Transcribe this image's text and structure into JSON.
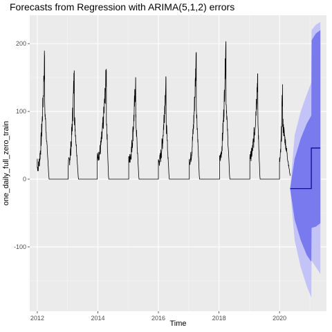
{
  "chart_data": {
    "type": "line",
    "title": "Forecasts from Regression with ARIMA(5,1,2) errors",
    "xlabel": "Time",
    "ylabel": "one_daily_full_zero_train",
    "xlim": [
      2011.75,
      2021.55
    ],
    "ylim": [
      -195,
      242
    ],
    "x_ticks": [
      2012,
      2014,
      2016,
      2018,
      2020
    ],
    "y_ticks": [
      -100,
      0,
      100,
      200
    ],
    "grid": true,
    "background": "#ebebeb",
    "colors": {
      "series": "#000000",
      "forecast_line": "#00008b",
      "band_80": "#7a7aef",
      "band_95": "#c3c3f7",
      "grid_major": "#ffffff"
    },
    "series": [
      {
        "name": "",
        "seasons": [
          {
            "start": 2012.0,
            "end": 2012.38,
            "peak_x": 2012.24,
            "peak": 182,
            "base": 28
          },
          {
            "start": 2013.02,
            "end": 2013.35,
            "peak_x": 2013.22,
            "peak": 160,
            "base": 40
          },
          {
            "start": 2013.98,
            "end": 2014.35,
            "peak_x": 2014.28,
            "peak": 159,
            "base": 55
          },
          {
            "start": 2015.02,
            "end": 2015.35,
            "peak_x": 2015.25,
            "peak": 150,
            "base": 48
          },
          {
            "start": 2016.0,
            "end": 2016.35,
            "peak_x": 2016.25,
            "peak": 150,
            "base": 42
          },
          {
            "start": 2017.02,
            "end": 2017.35,
            "peak_x": 2017.25,
            "peak": 187,
            "base": 45
          },
          {
            "start": 2018.02,
            "end": 2018.35,
            "peak_x": 2018.23,
            "peak": 203,
            "base": 50
          },
          {
            "start": 2019.02,
            "end": 2019.35,
            "peak_x": 2019.28,
            "peak": 156,
            "base": 55
          },
          {
            "start": 2020.0,
            "end": 2020.35,
            "peak_x": 2020.1,
            "peak": 140,
            "base": 45
          }
        ]
      }
    ],
    "forecast": {
      "start": 2020.35,
      "points": [
        {
          "x": 2020.35,
          "mean": -14
        },
        {
          "x": 2021.05,
          "mean": -14
        },
        {
          "x": 2021.05,
          "mean": 46
        },
        {
          "x": 2021.35,
          "mean": 46
        }
      ],
      "band_80": [
        {
          "x": 2020.35,
          "lo": -14,
          "hi": -14
        },
        {
          "x": 2020.5,
          "lo": -60,
          "hi": 30
        },
        {
          "x": 2020.7,
          "lo": -90,
          "hi": 60
        },
        {
          "x": 2020.9,
          "lo": -112,
          "hi": 82
        },
        {
          "x": 2021.05,
          "lo": -122,
          "hi": 94
        },
        {
          "x": 2021.06,
          "lo": -72,
          "hi": 205
        },
        {
          "x": 2021.2,
          "lo": -70,
          "hi": 215
        },
        {
          "x": 2021.35,
          "lo": -65,
          "hi": 220
        }
      ],
      "band_95": [
        {
          "x": 2020.35,
          "lo": -14,
          "hi": -14
        },
        {
          "x": 2020.5,
          "lo": -90,
          "hi": 65
        },
        {
          "x": 2020.7,
          "lo": -130,
          "hi": 100
        },
        {
          "x": 2020.9,
          "lo": -158,
          "hi": 125
        },
        {
          "x": 2021.05,
          "lo": -175,
          "hi": 143
        },
        {
          "x": 2021.06,
          "lo": -120,
          "hi": 220
        },
        {
          "x": 2021.2,
          "lo": -130,
          "hi": 228
        },
        {
          "x": 2021.35,
          "lo": -140,
          "hi": 232
        }
      ]
    }
  }
}
